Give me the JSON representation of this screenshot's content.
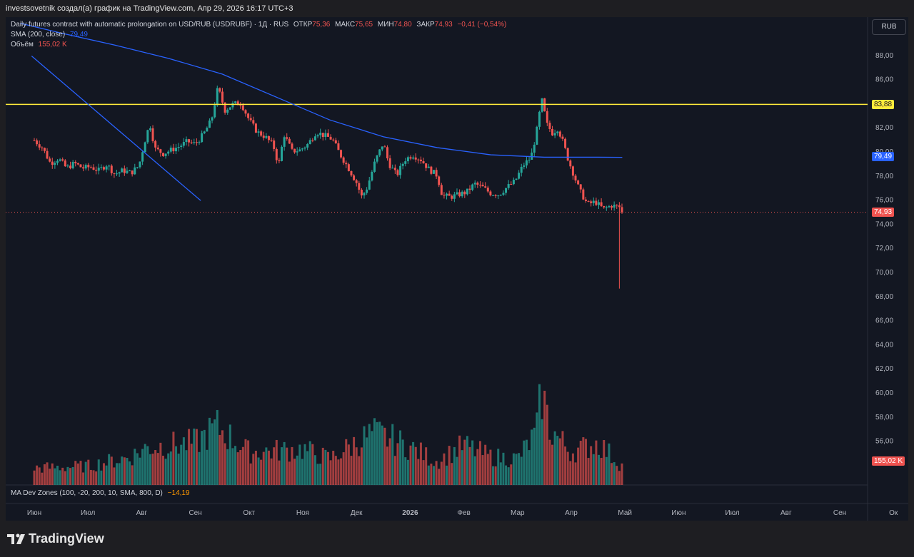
{
  "header": {
    "attribution": "investsovetnik создал(а) график на TradingView.com, Апр 29, 2026 16:17 UTC+3"
  },
  "legend": {
    "title": "Daily futures contract with automatic prolongation on USD/RUB (USDRUBF) · 1Д · RUS",
    "open_label": "ОТКР",
    "open": "75,36",
    "high_label": "МАКС",
    "high": "75,65",
    "low_label": "МИН",
    "low": "74,80",
    "close_label": "ЗАКР",
    "close": "74,93",
    "change": "−0,41 (−0,54%)",
    "sma_label": "SMA (200, close)",
    "sma_value": "79,49",
    "volume_label": "Объём",
    "volume_value": "155,02 K"
  },
  "indicator": {
    "label": "MA Dev Zones (100, -20, 200, 10, SMA, 800, D)",
    "value": "−14,19"
  },
  "currency_button": "RUB",
  "badges": {
    "level": "83,88",
    "sma": "79,49",
    "last": "74,93",
    "volume": "155,02 K"
  },
  "colors": {
    "up": "#26a69a",
    "down": "#ef5350",
    "sma": "#2962ff",
    "level": "#ffeb3b",
    "trend": "#2962ff",
    "background": "#131722"
  },
  "brand": "TradingView",
  "chart_data": {
    "type": "candlestick",
    "y_axis": {
      "ticks": [
        "88,00",
        "86,00",
        "84,00",
        "82,00",
        "80,00",
        "78,00",
        "76,00",
        "74,00",
        "72,00",
        "70,00",
        "68,00",
        "66,00",
        "64,00",
        "62,00",
        "60,00",
        "58,00",
        "56,00"
      ],
      "tick_values": [
        88,
        86,
        84,
        82,
        80,
        78,
        76,
        74,
        72,
        70,
        68,
        66,
        64,
        62,
        60,
        58,
        56
      ],
      "range": [
        55,
        90
      ]
    },
    "x_axis": {
      "labels": [
        "Июн",
        "Июл",
        "Авг",
        "Сен",
        "Окт",
        "Ноя",
        "Дек",
        "2026",
        "Фев",
        "Мар",
        "Апр",
        "Май",
        "Июн",
        "Июл",
        "Авг",
        "Сен",
        "Ок"
      ],
      "month_index": [
        0,
        1,
        2,
        3,
        4,
        5,
        6,
        7,
        8,
        9,
        10,
        11,
        12,
        13,
        14,
        15,
        16
      ]
    },
    "horizontal_level": 83.88,
    "last_price": 74.93,
    "sma_200": [
      {
        "m": -0.25,
        "v": 90.6
      },
      {
        "m": 0.5,
        "v": 89.8
      },
      {
        "m": 1.5,
        "v": 88.8
      },
      {
        "m": 2.5,
        "v": 87.7
      },
      {
        "m": 3.5,
        "v": 86.4
      },
      {
        "m": 4.5,
        "v": 84.5
      },
      {
        "m": 5.5,
        "v": 82.6
      },
      {
        "m": 6.5,
        "v": 81.2
      },
      {
        "m": 7.5,
        "v": 80.3
      },
      {
        "m": 8.5,
        "v": 79.7
      },
      {
        "m": 9.5,
        "v": 79.5
      },
      {
        "m": 10.5,
        "v": 79.5
      },
      {
        "m": 10.95,
        "v": 79.49
      }
    ],
    "trend_line": [
      {
        "m": -0.05,
        "v": 87.9
      },
      {
        "m": 3.1,
        "v": 75.9
      }
    ],
    "price_path": [
      {
        "m": 0,
        "v": 80.9
      },
      {
        "m": 0.15,
        "v": 80.3
      },
      {
        "m": 0.3,
        "v": 79.0
      },
      {
        "m": 0.45,
        "v": 79.4
      },
      {
        "m": 0.6,
        "v": 78.6
      },
      {
        "m": 0.75,
        "v": 79.0
      },
      {
        "m": 0.9,
        "v": 78.6
      },
      {
        "m": 1.05,
        "v": 78.7
      },
      {
        "m": 1.2,
        "v": 78.4
      },
      {
        "m": 1.35,
        "v": 78.9
      },
      {
        "m": 1.5,
        "v": 78.1
      },
      {
        "m": 1.65,
        "v": 78.4
      },
      {
        "m": 1.8,
        "v": 78.2
      },
      {
        "m": 1.95,
        "v": 78.8
      },
      {
        "m": 2.05,
        "v": 80.7
      },
      {
        "m": 2.15,
        "v": 82.3
      },
      {
        "m": 2.25,
        "v": 80.2
      },
      {
        "m": 2.4,
        "v": 79.8
      },
      {
        "m": 2.55,
        "v": 80.1
      },
      {
        "m": 2.7,
        "v": 80.4
      },
      {
        "m": 2.85,
        "v": 80.8
      },
      {
        "m": 3.0,
        "v": 80.6
      },
      {
        "m": 3.15,
        "v": 81.4
      },
      {
        "m": 3.3,
        "v": 82.6
      },
      {
        "m": 3.42,
        "v": 85.3
      },
      {
        "m": 3.55,
        "v": 83.4
      },
      {
        "m": 3.7,
        "v": 83.9
      },
      {
        "m": 3.85,
        "v": 84.0
      },
      {
        "m": 4.0,
        "v": 82.6
      },
      {
        "m": 4.15,
        "v": 81.6
      },
      {
        "m": 4.3,
        "v": 81.2
      },
      {
        "m": 4.45,
        "v": 80.5
      },
      {
        "m": 4.55,
        "v": 78.8
      },
      {
        "m": 4.65,
        "v": 81.4
      },
      {
        "m": 4.8,
        "v": 80.0
      },
      {
        "m": 4.95,
        "v": 80.1
      },
      {
        "m": 5.1,
        "v": 80.6
      },
      {
        "m": 5.25,
        "v": 81.6
      },
      {
        "m": 5.4,
        "v": 81.3
      },
      {
        "m": 5.55,
        "v": 81.0
      },
      {
        "m": 5.7,
        "v": 79.7
      },
      {
        "m": 5.85,
        "v": 78.6
      },
      {
        "m": 6.0,
        "v": 77.4
      },
      {
        "m": 6.1,
        "v": 76.2
      },
      {
        "m": 6.2,
        "v": 77.0
      },
      {
        "m": 6.35,
        "v": 79.2
      },
      {
        "m": 6.5,
        "v": 80.7
      },
      {
        "m": 6.6,
        "v": 79.0
      },
      {
        "m": 6.75,
        "v": 78.0
      },
      {
        "m": 6.9,
        "v": 79.3
      },
      {
        "m": 7.05,
        "v": 79.7
      },
      {
        "m": 7.2,
        "v": 79.3
      },
      {
        "m": 7.35,
        "v": 78.5
      },
      {
        "m": 7.5,
        "v": 78.0
      },
      {
        "m": 7.6,
        "v": 76.3
      },
      {
        "m": 7.75,
        "v": 76.2
      },
      {
        "m": 7.9,
        "v": 76.4
      },
      {
        "m": 8.05,
        "v": 76.6
      },
      {
        "m": 8.2,
        "v": 77.3
      },
      {
        "m": 8.35,
        "v": 77.0
      },
      {
        "m": 8.5,
        "v": 76.5
      },
      {
        "m": 8.65,
        "v": 76.4
      },
      {
        "m": 8.8,
        "v": 77.0
      },
      {
        "m": 8.95,
        "v": 77.5
      },
      {
        "m": 9.1,
        "v": 78.8
      },
      {
        "m": 9.25,
        "v": 79.5
      },
      {
        "m": 9.35,
        "v": 81.5
      },
      {
        "m": 9.45,
        "v": 84.3
      },
      {
        "m": 9.55,
        "v": 82.2
      },
      {
        "m": 9.65,
        "v": 81.5
      },
      {
        "m": 9.75,
        "v": 81.9
      },
      {
        "m": 9.85,
        "v": 80.7
      },
      {
        "m": 9.95,
        "v": 79.2
      },
      {
        "m": 10.05,
        "v": 78.0
      },
      {
        "m": 10.15,
        "v": 76.8
      },
      {
        "m": 10.3,
        "v": 75.6
      },
      {
        "m": 10.45,
        "v": 75.8
      },
      {
        "m": 10.6,
        "v": 75.2
      },
      {
        "m": 10.75,
        "v": 75.5
      },
      {
        "m": 10.9,
        "v": 75.36
      },
      {
        "m": 10.95,
        "v": 74.93
      }
    ],
    "anomaly_low": {
      "m": 10.9,
      "v": 68.6
    },
    "volume_profile": [
      {
        "m": 0,
        "v": 0.18
      },
      {
        "m": 1.0,
        "v": 0.2
      },
      {
        "m": 1.8,
        "v": 0.3
      },
      {
        "m": 2.1,
        "v": 0.4
      },
      {
        "m": 3.0,
        "v": 0.45
      },
      {
        "m": 3.4,
        "v": 0.62
      },
      {
        "m": 4.0,
        "v": 0.35
      },
      {
        "m": 5.0,
        "v": 0.38
      },
      {
        "m": 5.5,
        "v": 0.28
      },
      {
        "m": 6.3,
        "v": 0.55
      },
      {
        "m": 6.6,
        "v": 0.5
      },
      {
        "m": 7.0,
        "v": 0.4
      },
      {
        "m": 7.5,
        "v": 0.25
      },
      {
        "m": 8.0,
        "v": 0.42
      },
      {
        "m": 8.5,
        "v": 0.3
      },
      {
        "m": 9.0,
        "v": 0.28
      },
      {
        "m": 9.35,
        "v": 0.55
      },
      {
        "m": 9.45,
        "v": 1.0
      },
      {
        "m": 9.6,
        "v": 0.6
      },
      {
        "m": 10.0,
        "v": 0.35
      },
      {
        "m": 10.5,
        "v": 0.45
      },
      {
        "m": 10.95,
        "v": 0.2
      }
    ]
  }
}
